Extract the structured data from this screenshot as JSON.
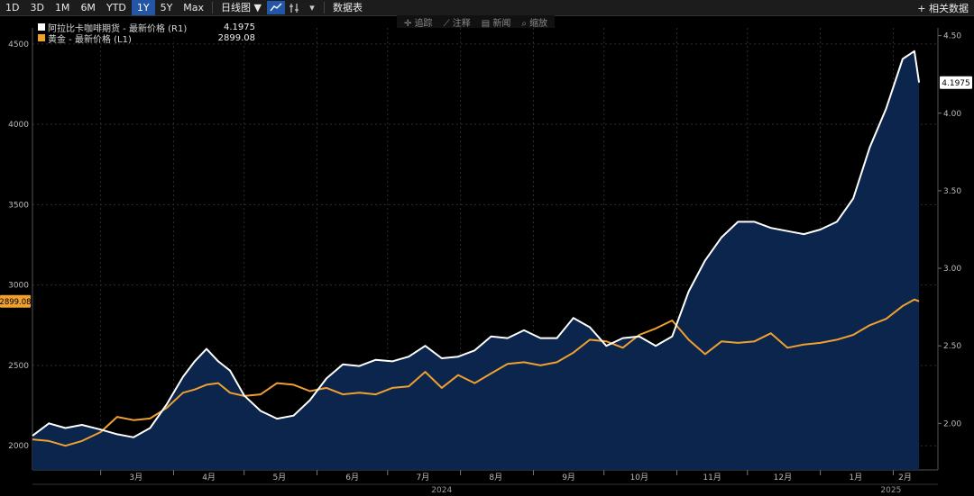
{
  "toolbar": {
    "periods": [
      "1D",
      "3D",
      "1M",
      "6M",
      "YTD",
      "1Y",
      "5Y",
      "Max"
    ],
    "active_period": "1Y",
    "chart_type_label": "日线图 ▼",
    "table_label": "数据表",
    "related_label": "+ 相关数据",
    "icons": [
      "line-chart-icon",
      "compare-icon",
      "dropdown-icon"
    ]
  },
  "subtoolbar": {
    "items": [
      "追踪",
      "注释",
      "新闻",
      "缩放"
    ]
  },
  "legend": {
    "items": [
      {
        "name": "阿拉比卡咖啡期货 - 最新价格 (R1)",
        "value": "4.1975",
        "color": "#ffffff"
      },
      {
        "name": "黄金 - 最新价格 (L1)",
        "value": "2899.08",
        "color": "#f0a030"
      }
    ]
  },
  "chart_data": {
    "type": "line",
    "title": "",
    "x_axis": {
      "months": [
        "3月",
        "4月",
        "5月",
        "6月",
        "7月",
        "8月",
        "9月",
        "10月",
        "11月",
        "12月",
        "1月",
        "2月"
      ],
      "years": [
        "2024",
        "2025"
      ]
    },
    "left_axis": {
      "ticks": [
        "2000",
        "2500",
        "3000",
        "3500",
        "4000",
        "4500"
      ],
      "range": [
        1850,
        4600
      ],
      "last_label": "2899.08"
    },
    "right_axis": {
      "ticks": [
        "2.00",
        "2.50",
        "3.00",
        "3.50",
        "4.00",
        "4.50"
      ],
      "range": [
        1.7,
        4.55
      ],
      "last_label": "4.1975"
    },
    "series": [
      {
        "name": "阿拉比卡咖啡期货 - 最新价格 (R1)",
        "axis": "right",
        "color": "#ffffff",
        "points": [
          [
            "2024-02-01",
            1.92
          ],
          [
            "2024-02-08",
            2.0
          ],
          [
            "2024-02-15",
            1.97
          ],
          [
            "2024-02-22",
            1.99
          ],
          [
            "2024-03-01",
            1.96
          ],
          [
            "2024-03-08",
            1.93
          ],
          [
            "2024-03-15",
            1.91
          ],
          [
            "2024-03-22",
            1.97
          ],
          [
            "2024-03-29",
            2.12
          ],
          [
            "2024-04-05",
            2.3
          ],
          [
            "2024-04-10",
            2.4
          ],
          [
            "2024-04-15",
            2.48
          ],
          [
            "2024-04-20",
            2.4
          ],
          [
            "2024-04-25",
            2.34
          ],
          [
            "2024-05-01",
            2.18
          ],
          [
            "2024-05-08",
            2.08
          ],
          [
            "2024-05-15",
            2.03
          ],
          [
            "2024-05-22",
            2.05
          ],
          [
            "2024-05-29",
            2.15
          ],
          [
            "2024-06-05",
            2.29
          ],
          [
            "2024-06-12",
            2.38
          ],
          [
            "2024-06-19",
            2.37
          ],
          [
            "2024-06-26",
            2.41
          ],
          [
            "2024-07-03",
            2.4
          ],
          [
            "2024-07-10",
            2.43
          ],
          [
            "2024-07-17",
            2.5
          ],
          [
            "2024-07-24",
            2.42
          ],
          [
            "2024-07-31",
            2.43
          ],
          [
            "2024-08-07",
            2.47
          ],
          [
            "2024-08-14",
            2.56
          ],
          [
            "2024-08-21",
            2.55
          ],
          [
            "2024-08-28",
            2.6
          ],
          [
            "2024-09-04",
            2.55
          ],
          [
            "2024-09-11",
            2.55
          ],
          [
            "2024-09-18",
            2.68
          ],
          [
            "2024-09-25",
            2.62
          ],
          [
            "2024-10-02",
            2.5
          ],
          [
            "2024-10-09",
            2.55
          ],
          [
            "2024-10-16",
            2.56
          ],
          [
            "2024-10-23",
            2.5
          ],
          [
            "2024-10-30",
            2.56
          ],
          [
            "2024-11-06",
            2.85
          ],
          [
            "2024-11-13",
            3.05
          ],
          [
            "2024-11-20",
            3.2
          ],
          [
            "2024-11-27",
            3.3
          ],
          [
            "2024-12-04",
            3.3
          ],
          [
            "2024-12-11",
            3.26
          ],
          [
            "2024-12-18",
            3.24
          ],
          [
            "2024-12-25",
            3.22
          ],
          [
            "2025-01-01",
            3.25
          ],
          [
            "2025-01-08",
            3.3
          ],
          [
            "2025-01-15",
            3.45
          ],
          [
            "2025-01-22",
            3.78
          ],
          [
            "2025-01-29",
            4.03
          ],
          [
            "2025-02-05",
            4.35
          ],
          [
            "2025-02-10",
            4.4
          ],
          [
            "2025-02-12",
            4.1975
          ]
        ]
      },
      {
        "name": "黄金 - 最新价格 (L1)",
        "axis": "left",
        "color": "#f0a030",
        "points": [
          [
            "2024-02-01",
            2040
          ],
          [
            "2024-02-08",
            2030
          ],
          [
            "2024-02-15",
            2000
          ],
          [
            "2024-02-22",
            2030
          ],
          [
            "2024-03-01",
            2085
          ],
          [
            "2024-03-08",
            2180
          ],
          [
            "2024-03-15",
            2160
          ],
          [
            "2024-03-22",
            2170
          ],
          [
            "2024-03-29",
            2235
          ],
          [
            "2024-04-05",
            2330
          ],
          [
            "2024-04-10",
            2350
          ],
          [
            "2024-04-15",
            2380
          ],
          [
            "2024-04-20",
            2390
          ],
          [
            "2024-04-25",
            2330
          ],
          [
            "2024-05-01",
            2310
          ],
          [
            "2024-05-08",
            2320
          ],
          [
            "2024-05-15",
            2390
          ],
          [
            "2024-05-22",
            2380
          ],
          [
            "2024-05-29",
            2340
          ],
          [
            "2024-06-05",
            2360
          ],
          [
            "2024-06-12",
            2320
          ],
          [
            "2024-06-19",
            2330
          ],
          [
            "2024-06-26",
            2320
          ],
          [
            "2024-07-03",
            2360
          ],
          [
            "2024-07-10",
            2370
          ],
          [
            "2024-07-17",
            2460
          ],
          [
            "2024-07-24",
            2360
          ],
          [
            "2024-07-31",
            2440
          ],
          [
            "2024-08-07",
            2390
          ],
          [
            "2024-08-14",
            2450
          ],
          [
            "2024-08-21",
            2510
          ],
          [
            "2024-08-28",
            2520
          ],
          [
            "2024-09-04",
            2500
          ],
          [
            "2024-09-11",
            2520
          ],
          [
            "2024-09-18",
            2580
          ],
          [
            "2024-09-25",
            2660
          ],
          [
            "2024-10-02",
            2650
          ],
          [
            "2024-10-09",
            2610
          ],
          [
            "2024-10-16",
            2690
          ],
          [
            "2024-10-23",
            2730
          ],
          [
            "2024-10-30",
            2780
          ],
          [
            "2024-11-06",
            2660
          ],
          [
            "2024-11-13",
            2570
          ],
          [
            "2024-11-20",
            2650
          ],
          [
            "2024-11-27",
            2640
          ],
          [
            "2024-12-04",
            2650
          ],
          [
            "2024-12-11",
            2700
          ],
          [
            "2024-12-18",
            2610
          ],
          [
            "2024-12-25",
            2630
          ],
          [
            "2025-01-01",
            2640
          ],
          [
            "2025-01-08",
            2660
          ],
          [
            "2025-01-15",
            2690
          ],
          [
            "2025-01-22",
            2750
          ],
          [
            "2025-01-29",
            2790
          ],
          [
            "2025-02-05",
            2870
          ],
          [
            "2025-02-10",
            2910
          ],
          [
            "2025-02-12",
            2899.08
          ]
        ]
      }
    ]
  }
}
